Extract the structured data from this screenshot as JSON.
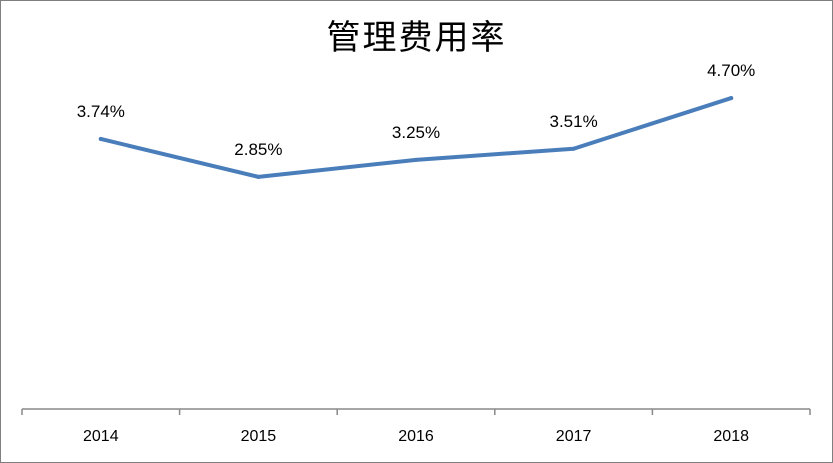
{
  "chart_data": {
    "type": "line",
    "title": "管理费用率",
    "categories": [
      "2014",
      "2015",
      "2016",
      "2017",
      "2018"
    ],
    "series": [
      {
        "values": [
          3.74,
          2.85,
          3.25,
          3.51,
          4.7
        ],
        "labels": [
          "3.74%",
          "2.85%",
          "3.25%",
          "3.51%",
          "4.70%"
        ],
        "color": "#4a7ebb"
      }
    ],
    "xlabel": "",
    "ylabel": "",
    "ylim": [
      -2.6,
      5.5
    ],
    "grid": false,
    "legend": "none"
  }
}
